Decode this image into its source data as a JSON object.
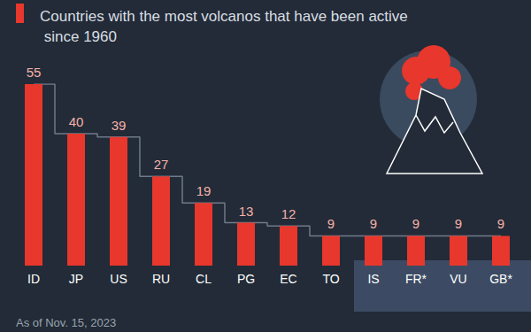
{
  "chart_data": {
    "type": "bar",
    "title": "Countries with the most volcanos that have been active since 1960",
    "note": "As of Nov. 15, 2023",
    "categories": [
      "ID",
      "JP",
      "US",
      "RU",
      "CL",
      "PG",
      "EC",
      "TO",
      "IS",
      "FR*",
      "VU",
      "GB*"
    ],
    "values": [
      55,
      40,
      39,
      27,
      19,
      13,
      12,
      9,
      9,
      9,
      9,
      9
    ],
    "color": "#e8372c",
    "ylim": [
      0,
      55
    ],
    "grid": false,
    "data_labels": true,
    "tick_labels": "x"
  }
}
